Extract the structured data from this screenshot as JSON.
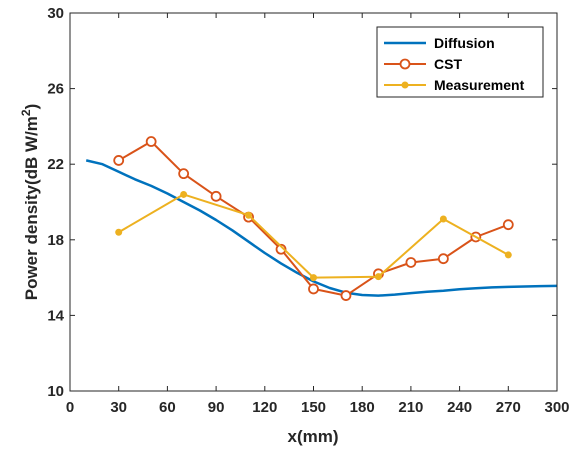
{
  "chart_data": {
    "type": "line",
    "xlabel": "x(mm)",
    "ylabel": "Power density(dB W/m",
    "ylabel_superscript": "2",
    "ylabel_close": ")",
    "xlim": [
      0,
      300
    ],
    "ylim": [
      10,
      30
    ],
    "xticks": [
      0,
      30,
      60,
      90,
      120,
      150,
      180,
      210,
      240,
      270,
      300
    ],
    "yticks": [
      10,
      14,
      18,
      22,
      26,
      30
    ],
    "grid": false,
    "legend_position": "top-right",
    "series": [
      {
        "name": "Diffusion",
        "color": "#0072BD",
        "marker": "none",
        "x": [
          10,
          20,
          30,
          40,
          50,
          60,
          70,
          80,
          90,
          100,
          110,
          120,
          130,
          140,
          150,
          160,
          170,
          180,
          190,
          200,
          210,
          220,
          230,
          240,
          250,
          260,
          270,
          280,
          290,
          300
        ],
        "y": [
          22.2,
          22.0,
          21.6,
          21.2,
          20.85,
          20.45,
          20.0,
          19.55,
          19.05,
          18.5,
          17.9,
          17.3,
          16.75,
          16.25,
          15.8,
          15.45,
          15.2,
          15.08,
          15.05,
          15.1,
          15.18,
          15.25,
          15.3,
          15.38,
          15.44,
          15.48,
          15.51,
          15.53,
          15.55,
          15.56
        ]
      },
      {
        "name": "CST",
        "color": "#D95319",
        "marker": "open-circle",
        "x": [
          30,
          50,
          70,
          90,
          110,
          130,
          150,
          170,
          190,
          210,
          230,
          250,
          270
        ],
        "y": [
          22.2,
          23.2,
          21.5,
          20.3,
          19.2,
          17.5,
          15.4,
          15.05,
          16.2,
          16.8,
          17.0,
          18.15,
          18.8
        ]
      },
      {
        "name": "Measurement",
        "color": "#EDB120",
        "marker": "filled-dot",
        "x": [
          30,
          70,
          110,
          150,
          190,
          230,
          270
        ],
        "y": [
          18.4,
          20.4,
          19.3,
          16.0,
          16.05,
          19.1,
          17.2
        ]
      }
    ]
  }
}
